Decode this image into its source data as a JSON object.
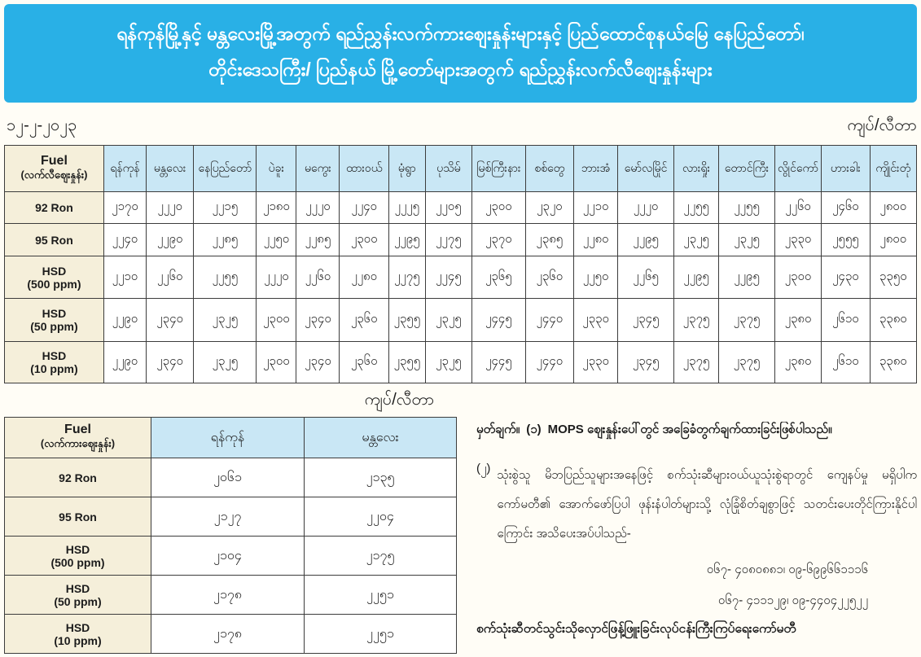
{
  "banner": {
    "line1": "ရန်ကုန်မြို့နှင့် မန္တလေးမြို့အတွက် ရည်ညွှန်းလက်ကားဈေးနှုန်းများနှင့် ပြည်ထောင်စုနယ်မြေ နေပြည်တော်၊",
    "line2": "တိုင်းဒေသကြီး/ ပြည်နယ် မြို့တော်များအတွက် ရည်ညွှန်းလက်လီဈေးနှုန်းများ"
  },
  "meta": {
    "date": "၁၂-၂-၂၀၂၃",
    "unit_top": "ကျပ်/လီတာ",
    "unit_mid": "ကျပ်/လီတာ"
  },
  "colors": {
    "banner_bg": "#29b0e6",
    "header_beige": "#f5efda",
    "header_blue": "#c9e7f5",
    "border": "#3c3c3c"
  },
  "retail_table": {
    "fuel_header": [
      "Fuel",
      "(လက်လီဈေးနှုန်း)"
    ],
    "cities": [
      "ရန်ကုန်",
      "မန္တလေး",
      "နေပြည်တော်",
      "ပဲခူး",
      "မကွေး",
      "ထားဝယ်",
      "မုံရွာ",
      "ပုသိမ်",
      "မြစ်ကြီးနား",
      "စစ်တွေ",
      "ဘားအံ",
      "မော်လမြိုင်",
      "လားရှိုး",
      "တောင်ကြီး",
      "လွိုင်ကော်",
      "ဟားခါး",
      "ကျိုင်းတုံ"
    ],
    "rows": [
      {
        "fuel": [
          "92 Ron"
        ],
        "values": [
          "၂၁၇၀",
          "၂၂၂၀",
          "၂၂၁၅",
          "၂၁၈၀",
          "၂၂၂၀",
          "၂၂၄၀",
          "၂၂၂၅",
          "၂၂၀၅",
          "၂၃၀၀",
          "၂၃၂၀",
          "၂၂၁၀",
          "၂၂၂၀",
          "၂၂၅၅",
          "၂၂၅၅",
          "၂၂၆၀",
          "၂၄၆၀",
          "၂၈၀၀"
        ]
      },
      {
        "fuel": [
          "95 Ron"
        ],
        "values": [
          "၂၂၄၀",
          "၂၂၉၀",
          "၂၂၈၅",
          "၂၂၅၀",
          "၂၂၈၅",
          "၂၃၀၀",
          "၂၂၉၅",
          "၂၂၇၅",
          "၂၃၇၀",
          "၂၃၈၅",
          "၂၂၈၀",
          "၂၂၉၅",
          "၂၃၂၅",
          "၂၃၂၅",
          "၂၃၃၀",
          "၂၅၅၅",
          "၂၈၀၀"
        ]
      },
      {
        "fuel": [
          "HSD",
          "(500 ppm)"
        ],
        "values": [
          "၂၂၁၀",
          "၂၂၆၀",
          "၂၂၅၅",
          "၂၂၂၀",
          "၂၂၆၀",
          "၂၂၈၀",
          "၂၂၇၅",
          "၂၂၄၅",
          "၂၃၆၅",
          "၂၃၆၀",
          "၂၂၅၀",
          "၂၂၆၅",
          "၂၂၉၅",
          "၂၂၉၅",
          "၂၃၀၀",
          "၂၄၃၀",
          "၃၃၅၀"
        ]
      },
      {
        "fuel": [
          "HSD",
          "(50 ppm)"
        ],
        "values": [
          "၂၂၉၀",
          "၂၃၄၀",
          "၂၃၂၅",
          "၂၃၀၀",
          "၂၃၄၀",
          "၂၃၆၀",
          "၂၃၅၅",
          "၂၃၂၅",
          "၂၄၄၅",
          "၂၄၄၀",
          "၂၃၃၀",
          "၂၃၄၅",
          "၂၃၇၅",
          "၂၃၇၅",
          "၂၃၈၀",
          "၂၆၁၀",
          "၃၃၈၀"
        ]
      },
      {
        "fuel": [
          "HSD",
          "(10 ppm)"
        ],
        "values": [
          "၂၂၉၀",
          "၂၃၄၀",
          "၂၃၂၅",
          "၂၃၀၀",
          "၂၃၄၀",
          "၂၃၆၀",
          "၂၃၅၅",
          "၂၃၂၅",
          "၂၄၄၅",
          "၂၄၄၀",
          "၂၃၃၀",
          "၂၃၄၅",
          "၂၃၇၅",
          "၂၃၇၅",
          "၂၃၈၀",
          "၂၆၁၀",
          "၃၃၈၀"
        ]
      }
    ]
  },
  "wholesale_table": {
    "fuel_header": [
      "Fuel",
      "(လက်ကားဈေးနှုန်း)"
    ],
    "cities": [
      "ရန်ကုန်",
      "မန္တလေး"
    ],
    "rows": [
      {
        "fuel": [
          "92 Ron"
        ],
        "values": [
          "၂၀၆၁",
          "၂၁၃၅"
        ]
      },
      {
        "fuel": [
          "95 Ron"
        ],
        "values": [
          "၂၁၂၇",
          "၂၂၀၄"
        ]
      },
      {
        "fuel": [
          "HSD",
          "(500 ppm)"
        ],
        "values": [
          "၂၁၀၄",
          "၂၁၇၅"
        ]
      },
      {
        "fuel": [
          "HSD",
          "(50 ppm)"
        ],
        "values": [
          "၂၁၇၈",
          "၂၂၅၁"
        ]
      },
      {
        "fuel": [
          "HSD",
          "(10 ppm)"
        ],
        "values": [
          "၂၁၇၈",
          "၂၂၅၁"
        ]
      }
    ]
  },
  "notes": {
    "heading_label": "မှတ်ချက်။",
    "item1_num": "(၁)",
    "item1_text": "MOPS ဈေးနှုန်းပေါ်တွင် အခြေခံတွက်ချက်ထားခြင်းဖြစ်ပါသည်။",
    "item2_num": "(၂)",
    "item2_text": "သုံးစွဲသူ မိဘပြည်သူများအနေဖြင့် စက်သုံးဆီများဝယ်ယူသုံးစွဲရာတွင် ကျေနပ်မှု မရှိပါက ကော်မတီ၏ အောက်ဖော်ပြပါ ဖုန်းနံပါတ်များသို့ လုံခြုံစိတ်ချစွာဖြင့် သတင်းပေးတိုင်ကြားနိုင်ပါကြောင်း အသိပေးအပ်ပါသည်-",
    "phone1": "၀၆၇- ၄၀၈၀၈၈၁၊ ၀၉-၆၉၉၆၆၁၁၁၆",
    "phone2": "၀၆၇- ၄၁၁၁၂၉၊ ၀၉-၄၄၀၄၂၂၅၂၂",
    "committee": "စက်သုံးဆီတင်သွင်းသိုလှောင်ဖြန့်ဖြူးခြင်းလုပ်ငန်းကြီးကြပ်ရေးကော်မတီ"
  }
}
